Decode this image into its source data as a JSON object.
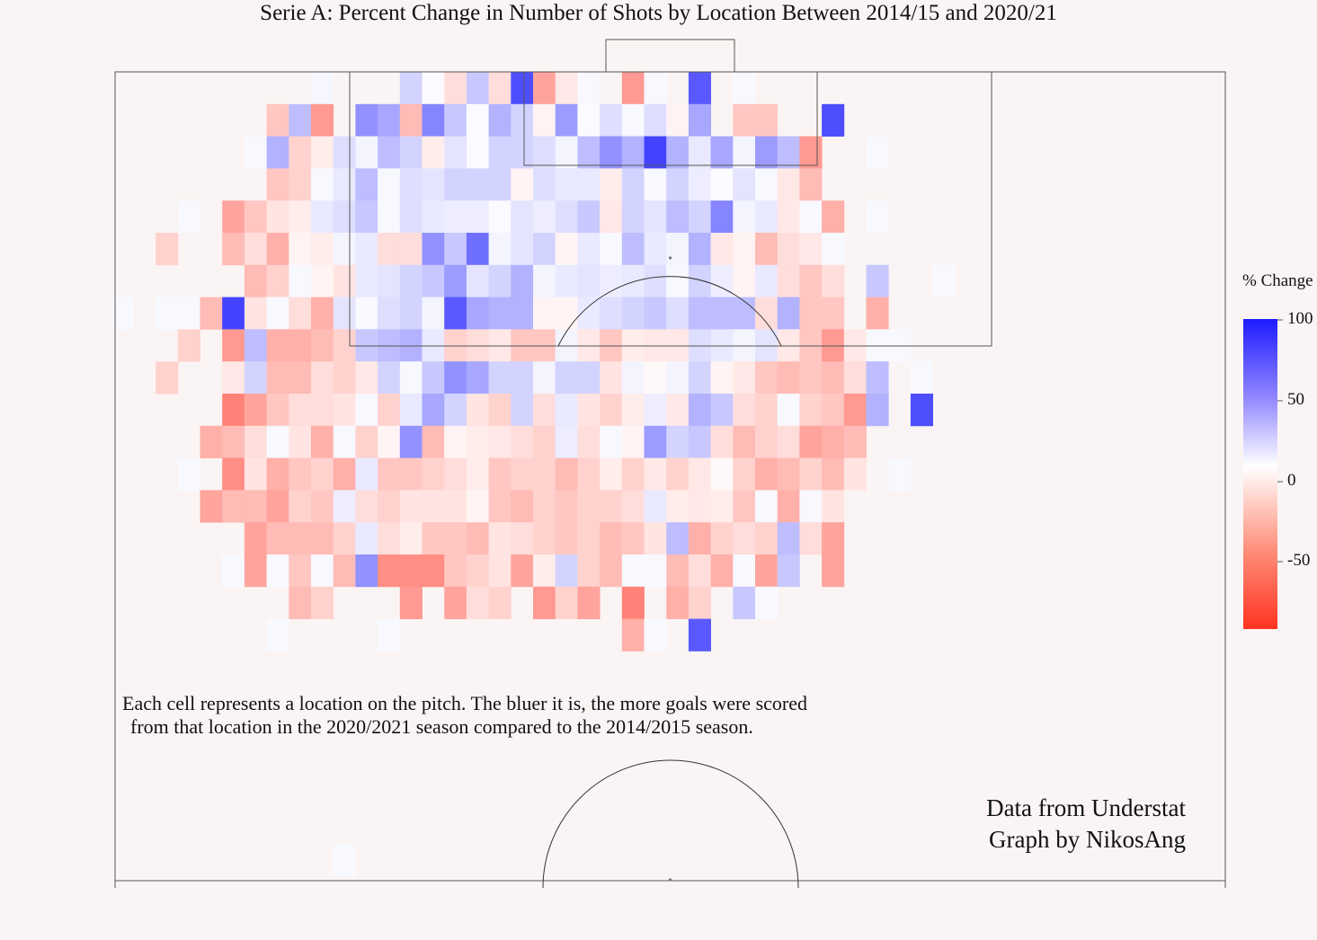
{
  "title": "Serie A: Percent Change in Number of Shots by Location Between 2014/15 and 2020/21",
  "note_lines": [
    "Each cell represents a location on the pitch. The bluer it is, the more goals were scored",
    "from that location in the 2020/2021 season compared to the 2014/2015 season."
  ],
  "credits": [
    "Data from Understat",
    "Graph by NikosAng"
  ],
  "colorbar": {
    "title": "% Change",
    "ticks": [
      "100",
      "50",
      "0",
      "-50"
    ],
    "tick_values": [
      100,
      50,
      0,
      -50
    ],
    "min": -90,
    "max": 100,
    "colors": {
      "low": "#ff3322",
      "mid": "#ffffff",
      "high": "#2222ff"
    }
  },
  "chart_data": {
    "type": "heatmap",
    "title": "Serie A: Percent Change in Number of Shots by Location Between 2014/15 and 2020/21",
    "value_label": "% Change",
    "col_count": 38,
    "cols_note": "column index 0..37 across the pitch width, row index 0..18 from the goal line outward",
    "cells": [
      {
        "row": 0,
        "values": {
          "15": 4,
          "19": 20,
          "20": 2,
          "21": -15,
          "22": 25,
          "23": -15,
          "24": 80,
          "25": -40,
          "26": -10,
          "27": 3,
          "29": -45,
          "30": 3,
          "32": 75,
          "34": 3
        }
      },
      {
        "row": 1,
        "values": {
          "13": -25,
          "14": 30,
          "15": -45,
          "17": 50,
          "18": 40,
          "19": -30,
          "20": 55,
          "21": 25,
          "22": 2,
          "23": 35,
          "24": 20,
          "25": -5,
          "26": 45,
          "27": 2,
          "28": 15,
          "29": 3,
          "30": 15,
          "31": -5,
          "32": 40,
          "34": -25,
          "35": -25,
          "38": 80
        }
      },
      {
        "row": 2,
        "values": {
          "12": 3,
          "13": 35,
          "14": -20,
          "15": -8,
          "16": 15,
          "17": 5,
          "18": 30,
          "19": 20,
          "20": -8,
          "21": 12,
          "22": 2,
          "23": 20,
          "24": 20,
          "25": 15,
          "26": 5,
          "27": 30,
          "28": 50,
          "29": 35,
          "30": 85,
          "31": 35,
          "32": 10,
          "33": 40,
          "34": 5,
          "35": 45,
          "36": 30,
          "37": -45,
          "40": 3
        }
      },
      {
        "row": 3,
        "values": {
          "13": -25,
          "14": -20,
          "15": 3,
          "16": 10,
          "17": 30,
          "18": 3,
          "19": 15,
          "20": 12,
          "21": 20,
          "22": 20,
          "23": 20,
          "24": -5,
          "25": 15,
          "26": 10,
          "27": 10,
          "28": -8,
          "29": 20,
          "30": 3,
          "31": 20,
          "32": 8,
          "33": 2,
          "34": 12,
          "35": 3,
          "36": -10,
          "37": -30
        }
      },
      {
        "row": 4,
        "values": {
          "9": 3,
          "11": -40,
          "12": -25,
          "13": -12,
          "14": -8,
          "15": 10,
          "16": 15,
          "17": 25,
          "18": 3,
          "19": 15,
          "20": 10,
          "21": 8,
          "22": 8,
          "23": 2,
          "24": 12,
          "25": 8,
          "26": 15,
          "27": 25,
          "28": -10,
          "29": 20,
          "30": 12,
          "31": 30,
          "32": 20,
          "33": 55,
          "34": 5,
          "35": 10,
          "36": -10,
          "37": 3,
          "38": -35,
          "40": 3
        }
      },
      {
        "row": 5,
        "values": {
          "8": -20,
          "11": -30,
          "12": -15,
          "13": -35,
          "14": -5,
          "15": -8,
          "16": 5,
          "17": 10,
          "18": -15,
          "19": -15,
          "20": 50,
          "21": 25,
          "22": 65,
          "23": 5,
          "24": 12,
          "25": 20,
          "26": -5,
          "27": 10,
          "28": 3,
          "29": 30,
          "30": 10,
          "31": 5,
          "32": 35,
          "33": -10,
          "34": -5,
          "35": -30,
          "36": -15,
          "37": -10,
          "38": 3
        }
      },
      {
        "row": 6,
        "values": {
          "12": -30,
          "13": -20,
          "14": 3,
          "15": -5,
          "16": -12,
          "17": 10,
          "18": 12,
          "19": 20,
          "20": 25,
          "21": 45,
          "22": 12,
          "23": 20,
          "24": 35,
          "25": 5,
          "26": 10,
          "27": 12,
          "28": 8,
          "29": 10,
          "30": 15,
          "31": 3,
          "32": 20,
          "33": 8,
          "34": -5,
          "35": 10,
          "36": -15,
          "37": -25,
          "38": -15,
          "40": 25,
          "43": 3
        }
      },
      {
        "row": 7,
        "values": {
          "6": 3,
          "8": 3,
          "9": 3,
          "10": -30,
          "11": 85,
          "12": -12,
          "13": 3,
          "14": -15,
          "15": -35,
          "16": 12,
          "17": 3,
          "18": 15,
          "19": 20,
          "20": 5,
          "21": 75,
          "22": 40,
          "23": 35,
          "24": 35,
          "25": -5,
          "26": -5,
          "27": 10,
          "28": 15,
          "29": 20,
          "30": 25,
          "31": 15,
          "32": 30,
          "33": 30,
          "34": 30,
          "35": -15,
          "36": 35,
          "37": -25,
          "38": -25,
          "40": -35
        }
      },
      {
        "row": 8,
        "values": {
          "9": -20,
          "11": -45,
          "12": 30,
          "13": -35,
          "14": -35,
          "15": -30,
          "16": -20,
          "17": 25,
          "18": 30,
          "19": 35,
          "20": 10,
          "21": -20,
          "22": -15,
          "23": -10,
          "24": -25,
          "25": -25,
          "26": 5,
          "27": -10,
          "28": -25,
          "29": -8,
          "30": -10,
          "31": -10,
          "32": 15,
          "33": 10,
          "34": 5,
          "35": 12,
          "36": -10,
          "37": -25,
          "38": -45,
          "39": -10,
          "40": 3,
          "41": 3
        }
      },
      {
        "row": 9,
        "values": {
          "8": -20,
          "11": -10,
          "12": 20,
          "13": -30,
          "14": -30,
          "15": -15,
          "16": -20,
          "17": -10,
          "18": 20,
          "19": 3,
          "20": 25,
          "21": 50,
          "22": 40,
          "23": 20,
          "24": 20,
          "25": 5,
          "26": 20,
          "27": 20,
          "28": -12,
          "29": 5,
          "30": -3,
          "31": 5,
          "32": 20,
          "33": -5,
          "34": -10,
          "35": -25,
          "36": -30,
          "37": -25,
          "38": -30,
          "39": -15,
          "40": 30,
          "42": 3
        }
      },
      {
        "row": 10,
        "values": {
          "11": -55,
          "12": -40,
          "13": -25,
          "14": -15,
          "15": -15,
          "16": -12,
          "17": 3,
          "18": -20,
          "19": 10,
          "20": 40,
          "21": 20,
          "22": -12,
          "23": -20,
          "24": 20,
          "25": -15,
          "26": 10,
          "27": -12,
          "28": -20,
          "29": -8,
          "30": 8,
          "31": -10,
          "32": 35,
          "33": 25,
          "34": -15,
          "35": -20,
          "36": 3,
          "37": -20,
          "38": -25,
          "39": -45,
          "40": 35,
          "42": 80
        }
      },
      {
        "row": 11,
        "values": {
          "10": -35,
          "11": -30,
          "12": -15,
          "13": 3,
          "14": -12,
          "15": -35,
          "16": 3,
          "17": -20,
          "18": -5,
          "19": 50,
          "20": -30,
          "21": -5,
          "22": -8,
          "23": -10,
          "24": -15,
          "25": -20,
          "26": 8,
          "27": -15,
          "28": 3,
          "29": -5,
          "30": 45,
          "31": 20,
          "32": 25,
          "33": -15,
          "34": -30,
          "35": -20,
          "36": -15,
          "37": -40,
          "38": -35,
          "39": -30
        }
      },
      {
        "row": 12,
        "values": {
          "9": 3,
          "11": -50,
          "12": -12,
          "13": -35,
          "14": -25,
          "15": -20,
          "16": -35,
          "17": 10,
          "18": -25,
          "19": -25,
          "20": -20,
          "21": -15,
          "22": -8,
          "23": -25,
          "24": -20,
          "25": -20,
          "26": -30,
          "27": -20,
          "28": -8,
          "29": -20,
          "30": -10,
          "31": -20,
          "32": -10,
          "33": -3,
          "34": -20,
          "35": -35,
          "36": -30,
          "37": -20,
          "38": -30,
          "39": -12,
          "41": 3
        }
      },
      {
        "row": 13,
        "values": {
          "10": -40,
          "11": -30,
          "12": -30,
          "13": -40,
          "14": -20,
          "15": -25,
          "16": 8,
          "17": -15,
          "18": -20,
          "19": -12,
          "20": -12,
          "21": -12,
          "22": -5,
          "23": -25,
          "24": -30,
          "25": -20,
          "26": -25,
          "27": -20,
          "28": -20,
          "29": -15,
          "30": 10,
          "31": -8,
          "32": -10,
          "33": -8,
          "34": -25,
          "35": 3,
          "36": -35,
          "37": 3,
          "38": -12
        }
      },
      {
        "row": 14,
        "values": {
          "12": -40,
          "13": -30,
          "14": -30,
          "15": -30,
          "16": -20,
          "17": 10,
          "18": -15,
          "19": -8,
          "20": -25,
          "21": -25,
          "22": -30,
          "23": -12,
          "24": -15,
          "25": -20,
          "26": -25,
          "27": -20,
          "28": -30,
          "29": -25,
          "30": -12,
          "31": 30,
          "32": -35,
          "33": -20,
          "34": -15,
          "35": -20,
          "36": 30,
          "37": -15,
          "38": -40
        }
      },
      {
        "row": 15,
        "values": {
          "11": 3,
          "12": -40,
          "13": 3,
          "14": -25,
          "15": 3,
          "16": -30,
          "17": 50,
          "18": -50,
          "19": -50,
          "20": -50,
          "21": -25,
          "22": -20,
          "23": -12,
          "24": -40,
          "25": -8,
          "26": 20,
          "27": -20,
          "28": -30,
          "29": 3,
          "30": 3,
          "31": -30,
          "32": -15,
          "33": -35,
          "34": 3,
          "35": -40,
          "36": 25,
          "38": -40
        }
      },
      {
        "row": 16,
        "values": {
          "14": -30,
          "15": -20,
          "19": -45,
          "21": -40,
          "22": -15,
          "23": -20,
          "25": -45,
          "26": -20,
          "27": -40,
          "29": -55,
          "31": -35,
          "32": -20,
          "34": 25,
          "35": 3
        }
      },
      {
        "row": 17,
        "values": {
          "13": 3,
          "18": 3,
          "29": -35,
          "30": 3,
          "32": 75
        }
      },
      {
        "row": 24,
        "values": {
          "16": 3
        }
      }
    ]
  }
}
